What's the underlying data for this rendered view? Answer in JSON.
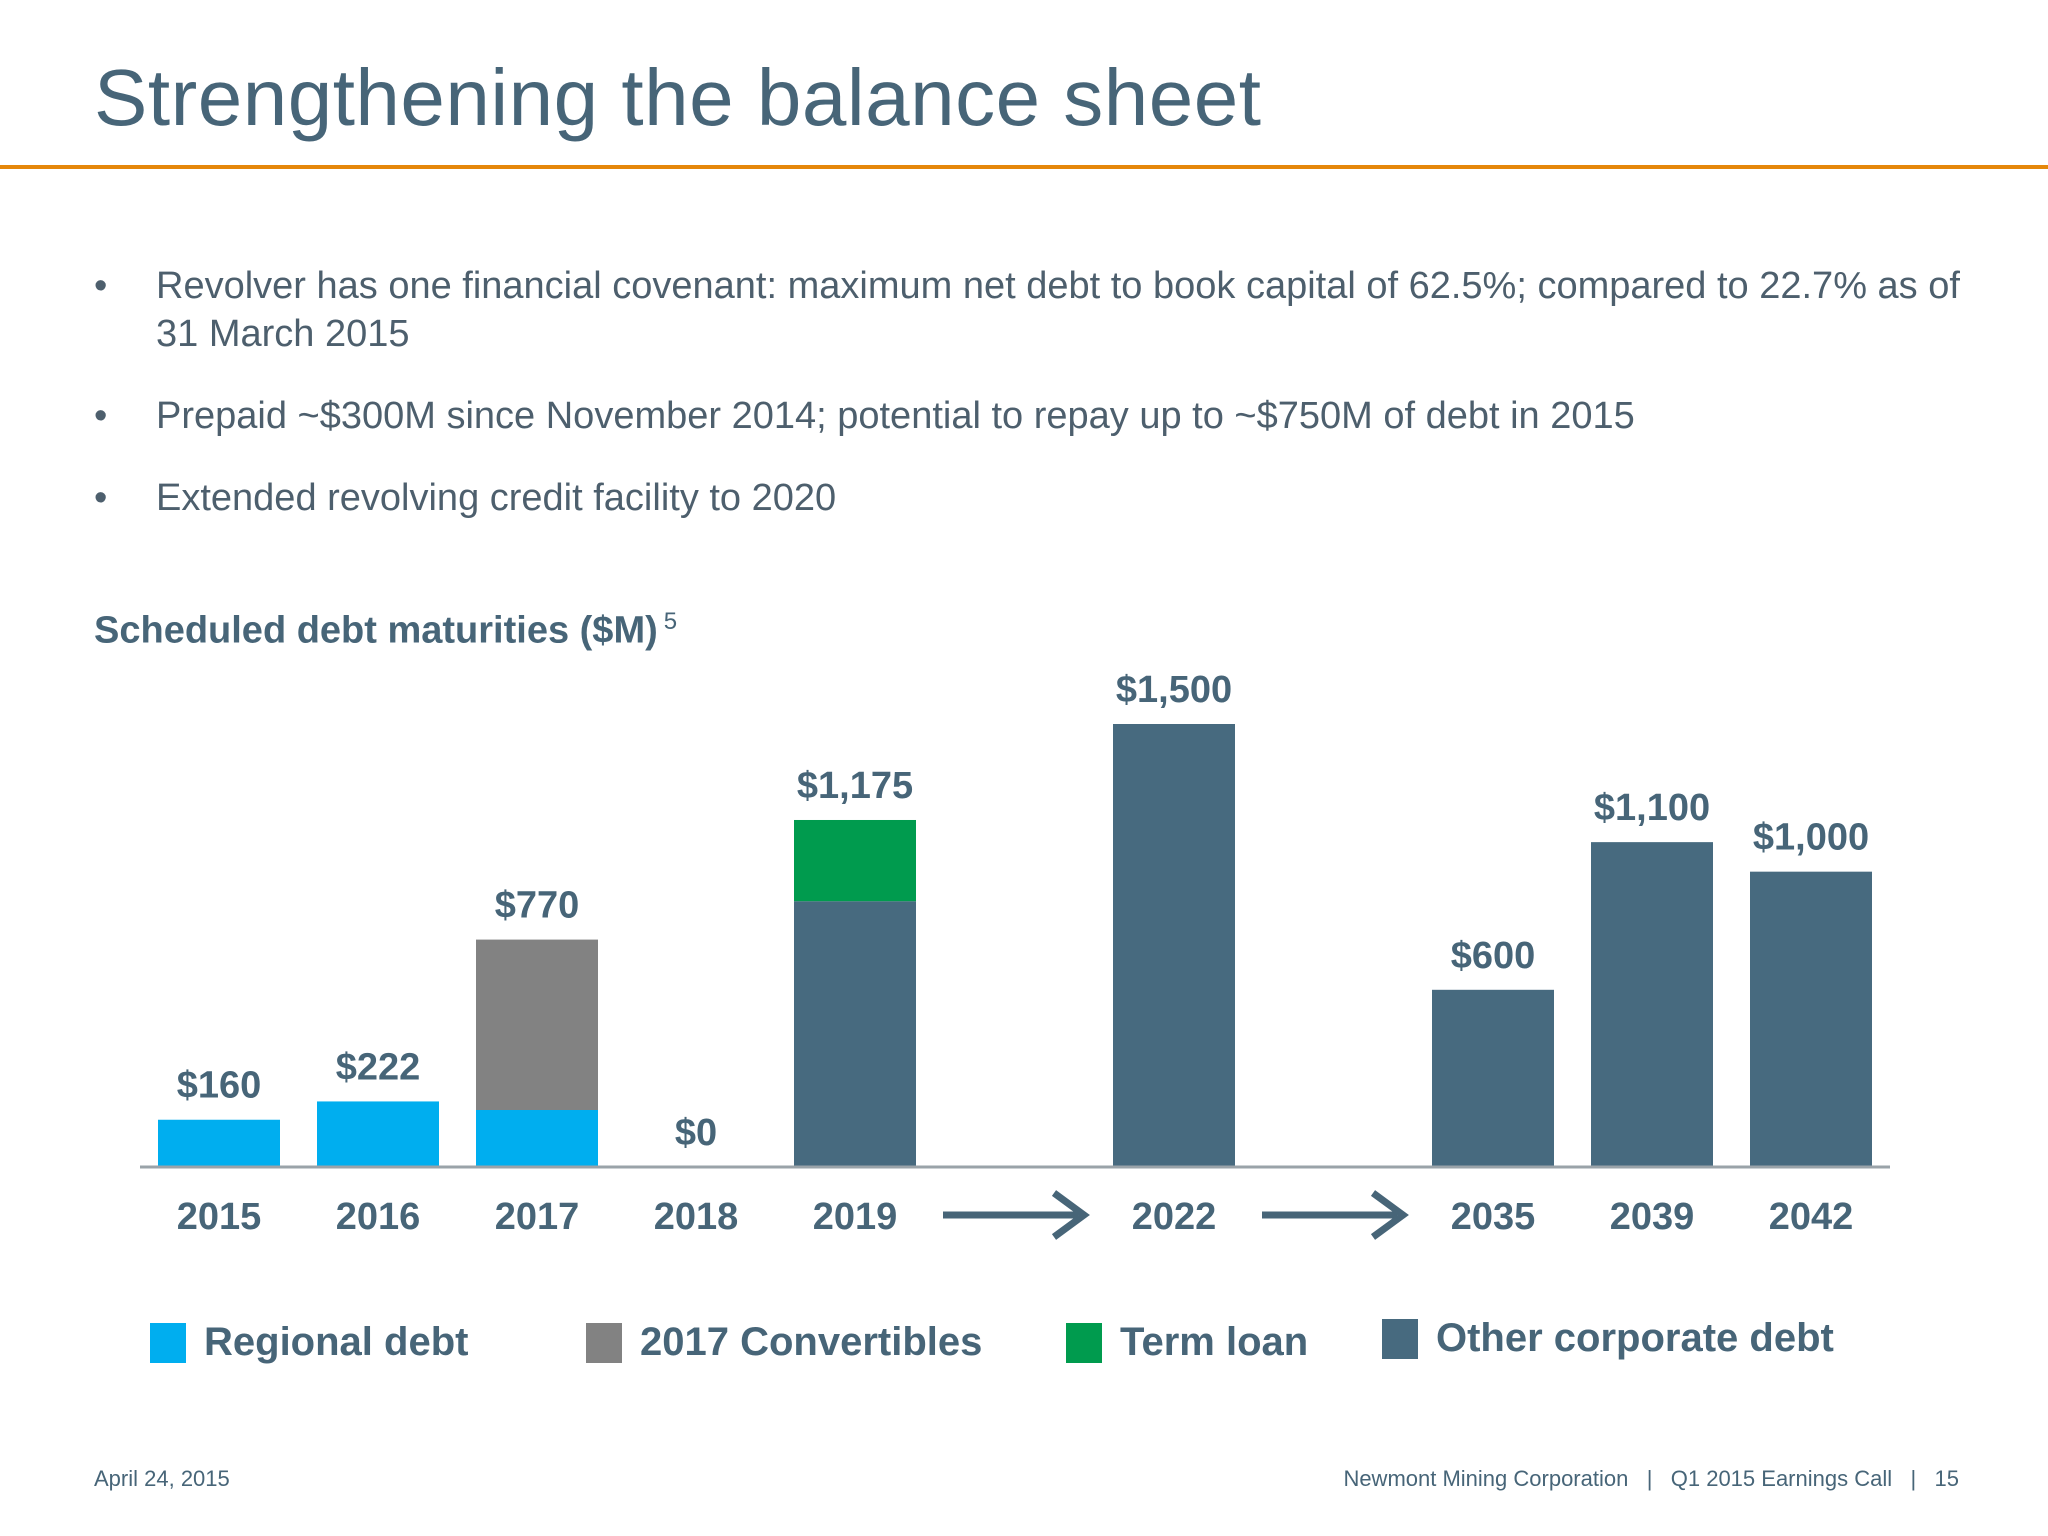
{
  "title": "Strengthening the balance sheet",
  "bullets": [
    "Revolver has one financial covenant: maximum net debt to book capital of 62.5%; compared to 22.7% as of 31 March 2015",
    "Prepaid ~$300M since November 2014; potential to repay up to ~$750M of debt in 2015",
    "Extended revolving credit facility to 2020"
  ],
  "bullet_symbol": "•",
  "chart_data": {
    "type": "bar",
    "stacked": true,
    "title": "Scheduled debt maturities ($M)",
    "title_footnote": "5",
    "categories": [
      "2015",
      "2016",
      "2017",
      "2018",
      "2019",
      "2022",
      "2035",
      "2039",
      "2042"
    ],
    "series": [
      {
        "name": "Regional debt",
        "color": "#00aeef",
        "values": [
          160,
          222,
          193,
          0,
          0,
          0,
          0,
          0,
          0
        ]
      },
      {
        "name": "2017 Convertibles",
        "color": "#828282",
        "values": [
          0,
          0,
          577,
          0,
          0,
          0,
          0,
          0,
          0
        ]
      },
      {
        "name": "Other corporate debt",
        "color": "#476a7f",
        "values": [
          0,
          0,
          0,
          0,
          900,
          1500,
          600,
          1100,
          1000
        ]
      },
      {
        "name": "Term loan",
        "color": "#009b4e",
        "values": [
          0,
          0,
          0,
          0,
          275,
          0,
          0,
          0,
          0
        ]
      }
    ],
    "totals": [
      "$160",
      "$222",
      "$770",
      "$0",
      "$1,175",
      "$1,500",
      "$600",
      "$1,100",
      "$1,000"
    ],
    "axis_breaks_after": [
      "2019",
      "2022"
    ],
    "ylim": [
      0,
      1500
    ],
    "grid": false,
    "legend_position": "bottom",
    "legend": [
      {
        "name": "Regional debt",
        "color": "#00aeef"
      },
      {
        "name": "2017 Convertibles",
        "color": "#828282"
      },
      {
        "name": "Term loan",
        "color": "#009b4e"
      },
      {
        "name": "Other corporate debt",
        "color": "#476a7f"
      }
    ]
  },
  "footer": {
    "date": "April 24, 2015",
    "company": "Newmont Mining Corporation",
    "event": "Q1 2015 Earnings Call",
    "page": "15",
    "separator": "|"
  }
}
